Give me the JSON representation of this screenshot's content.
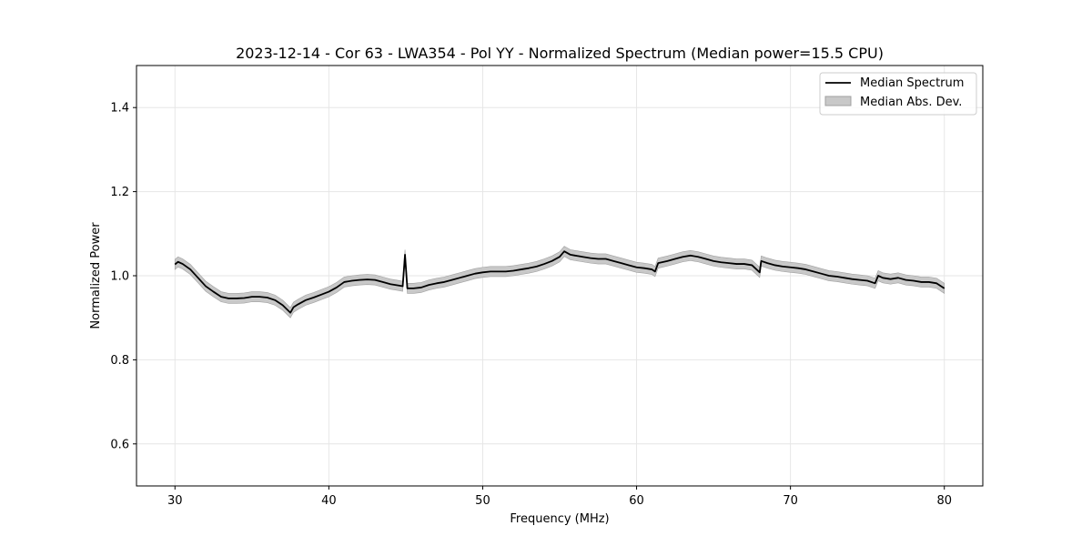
{
  "chart_data": {
    "type": "line",
    "title": "2023-12-14 - Cor 63 - LWA354 - Pol YY - Normalized Spectrum (Median power=15.5 CPU)",
    "xlabel": "Frequency (MHz)",
    "ylabel": "Normalized Power",
    "xlim": [
      27.5,
      82.5
    ],
    "ylim": [
      0.5,
      1.5
    ],
    "xticks": [
      30,
      40,
      50,
      60,
      70,
      80
    ],
    "yticks": [
      0.6,
      0.8,
      1.0,
      1.2,
      1.4
    ],
    "grid": true,
    "legend_position": "top-right",
    "colors": {
      "line": "#000000",
      "band": "#c8c8c8",
      "band_edge": "#a0a0a0",
      "grid": "#e6e6e6"
    },
    "series": [
      {
        "name": "Median Spectrum",
        "kind": "line",
        "mad_half_width": 0.012,
        "points": [
          [
            30.0,
            1.027
          ],
          [
            30.2,
            1.033
          ],
          [
            30.5,
            1.028
          ],
          [
            31.0,
            1.015
          ],
          [
            31.5,
            0.995
          ],
          [
            32.0,
            0.975
          ],
          [
            32.5,
            0.962
          ],
          [
            33.0,
            0.95
          ],
          [
            33.5,
            0.946
          ],
          [
            34.0,
            0.946
          ],
          [
            34.5,
            0.947
          ],
          [
            35.0,
            0.95
          ],
          [
            35.5,
            0.95
          ],
          [
            36.0,
            0.948
          ],
          [
            36.5,
            0.942
          ],
          [
            37.0,
            0.93
          ],
          [
            37.5,
            0.912
          ],
          [
            37.7,
            0.925
          ],
          [
            38.0,
            0.932
          ],
          [
            38.5,
            0.942
          ],
          [
            39.0,
            0.948
          ],
          [
            39.5,
            0.955
          ],
          [
            40.0,
            0.962
          ],
          [
            40.5,
            0.972
          ],
          [
            41.0,
            0.985
          ],
          [
            41.5,
            0.988
          ],
          [
            42.0,
            0.99
          ],
          [
            42.5,
            0.991
          ],
          [
            43.0,
            0.99
          ],
          [
            43.5,
            0.985
          ],
          [
            44.0,
            0.98
          ],
          [
            44.5,
            0.977
          ],
          [
            44.8,
            0.975
          ],
          [
            44.95,
            1.05
          ],
          [
            45.1,
            0.97
          ],
          [
            45.5,
            0.97
          ],
          [
            46.0,
            0.972
          ],
          [
            46.5,
            0.978
          ],
          [
            47.0,
            0.982
          ],
          [
            47.5,
            0.985
          ],
          [
            48.0,
            0.99
          ],
          [
            48.5,
            0.995
          ],
          [
            49.0,
            1.0
          ],
          [
            49.5,
            1.005
          ],
          [
            50.0,
            1.008
          ],
          [
            50.5,
            1.01
          ],
          [
            51.0,
            1.01
          ],
          [
            51.5,
            1.01
          ],
          [
            52.0,
            1.012
          ],
          [
            52.5,
            1.015
          ],
          [
            53.0,
            1.018
          ],
          [
            53.5,
            1.022
          ],
          [
            54.0,
            1.028
          ],
          [
            54.5,
            1.035
          ],
          [
            55.0,
            1.045
          ],
          [
            55.3,
            1.058
          ],
          [
            55.7,
            1.05
          ],
          [
            56.0,
            1.048
          ],
          [
            56.5,
            1.045
          ],
          [
            57.0,
            1.042
          ],
          [
            57.5,
            1.04
          ],
          [
            58.0,
            1.04
          ],
          [
            58.5,
            1.035
          ],
          [
            59.0,
            1.03
          ],
          [
            59.5,
            1.025
          ],
          [
            60.0,
            1.02
          ],
          [
            60.5,
            1.018
          ],
          [
            61.0,
            1.015
          ],
          [
            61.2,
            1.01
          ],
          [
            61.4,
            1.03
          ],
          [
            62.0,
            1.035
          ],
          [
            62.5,
            1.04
          ],
          [
            63.0,
            1.045
          ],
          [
            63.5,
            1.048
          ],
          [
            64.0,
            1.045
          ],
          [
            64.5,
            1.04
          ],
          [
            65.0,
            1.035
          ],
          [
            65.5,
            1.032
          ],
          [
            66.0,
            1.03
          ],
          [
            66.5,
            1.028
          ],
          [
            67.0,
            1.028
          ],
          [
            67.5,
            1.025
          ],
          [
            68.0,
            1.008
          ],
          [
            68.1,
            1.035
          ],
          [
            68.5,
            1.03
          ],
          [
            69.0,
            1.025
          ],
          [
            69.5,
            1.022
          ],
          [
            70.0,
            1.02
          ],
          [
            70.5,
            1.018
          ],
          [
            71.0,
            1.015
          ],
          [
            71.5,
            1.01
          ],
          [
            72.0,
            1.005
          ],
          [
            72.5,
            1.0
          ],
          [
            73.0,
            0.998
          ],
          [
            73.5,
            0.995
          ],
          [
            74.0,
            0.992
          ],
          [
            74.5,
            0.99
          ],
          [
            75.0,
            0.988
          ],
          [
            75.5,
            0.982
          ],
          [
            75.7,
            1.0
          ],
          [
            76.0,
            0.995
          ],
          [
            76.5,
            0.992
          ],
          [
            77.0,
            0.995
          ],
          [
            77.5,
            0.99
          ],
          [
            78.0,
            0.988
          ],
          [
            78.5,
            0.985
          ],
          [
            79.0,
            0.985
          ],
          [
            79.5,
            0.982
          ],
          [
            80.0,
            0.97
          ]
        ]
      },
      {
        "name": "Median Abs. Dev.",
        "kind": "band"
      }
    ]
  }
}
